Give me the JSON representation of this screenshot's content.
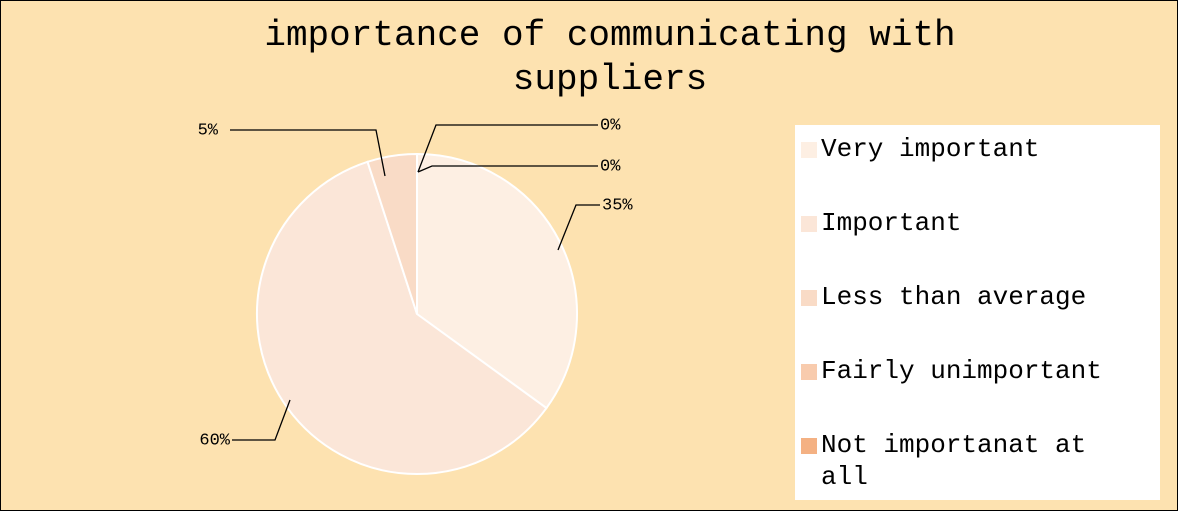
{
  "chart_data": {
    "type": "pie",
    "title": "importance of communicating with suppliers",
    "categories": [
      "Very important",
      "Important",
      "Less than average",
      "Fairly unimportant",
      "Not importanat at all"
    ],
    "values": [
      35,
      60,
      5,
      0,
      0
    ],
    "value_labels": [
      "35%",
      "60%",
      "5%",
      "0%",
      "0%"
    ],
    "colors": [
      "#fdefe3",
      "#fbe6d8",
      "#f9dbc6",
      "#f8cbad",
      "#f4b183"
    ],
    "legend": "right"
  }
}
